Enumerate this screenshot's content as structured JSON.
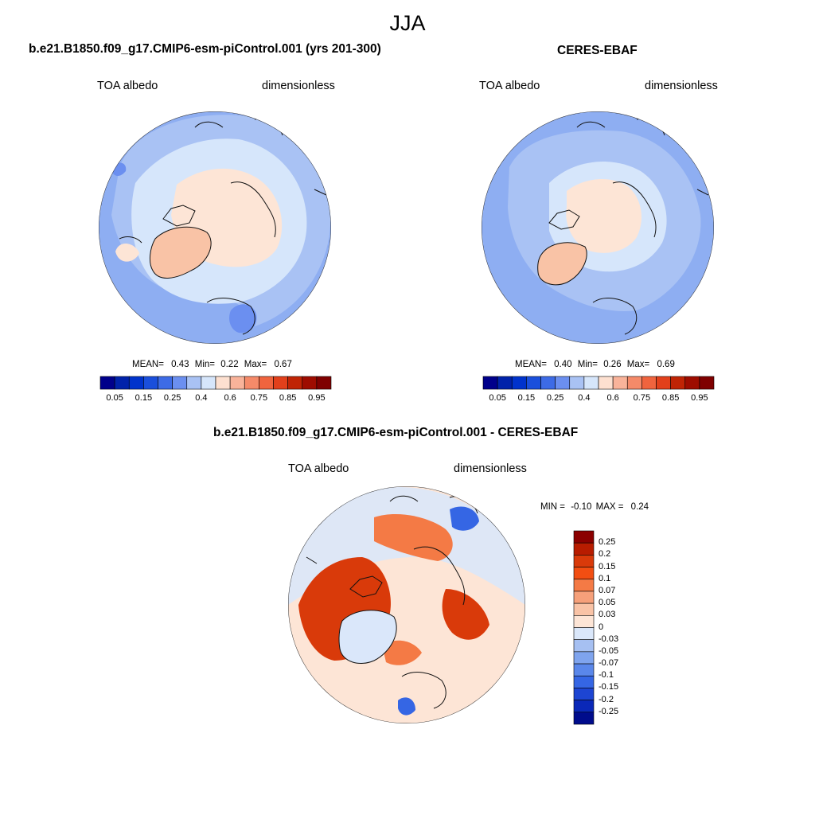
{
  "figure": {
    "season": "JJA"
  },
  "panels": [
    {
      "title": "b.e21.B1850.f09_g17.CMIP6-esm-piControl.001 (yrs 201-300)",
      "left_label": "TOA albedo",
      "right_label": "dimensionless",
      "stats": {
        "mean_label": "MEAN=",
        "mean": "0.43",
        "min_label": "Min=",
        "min": "0.22",
        "max_label": "Max=",
        "max": "0.67"
      }
    },
    {
      "title": "CERES-EBAF",
      "left_label": "TOA albedo",
      "right_label": "dimensionless",
      "stats": {
        "mean_label": "MEAN=",
        "mean": "0.40",
        "min_label": "Min=",
        "min": "0.26",
        "max_label": "Max=",
        "max": "0.69"
      }
    },
    {
      "title": "b.e21.B1850.f09_g17.CMIP6-esm-piControl.001 - CERES-EBAF",
      "left_label": "TOA albedo",
      "right_label": "dimensionless",
      "stats": {
        "min_label": "MIN =",
        "min": "-0.10",
        "max_label": "MAX =",
        "max": "0.24"
      }
    }
  ],
  "chart_data": [
    {
      "type": "heatmap",
      "projection": "north-polar-stereographic",
      "variable": "TOA albedo",
      "units": "dimensionless",
      "colorbar_orientation": "horizontal",
      "colorbar_ticks": [
        "0.05",
        "0.15",
        "0.25",
        "0.4",
        "0.6",
        "0.75",
        "0.85",
        "0.95"
      ],
      "colorbar_levels": [
        0.05,
        0.1,
        0.15,
        0.2,
        0.25,
        0.3,
        0.4,
        0.5,
        0.6,
        0.7,
        0.75,
        0.8,
        0.85,
        0.9,
        0.95
      ],
      "colorbar_colors": [
        "#00008b",
        "#0022aa",
        "#0033cc",
        "#1a4fdc",
        "#3d6be6",
        "#6b8ff0",
        "#a9c2f4",
        "#d6e6fb",
        "#fde0d0",
        "#f9b39a",
        "#f58a69",
        "#f0643e",
        "#e2401b",
        "#c02405",
        "#9e0c00",
        "#7f0000"
      ],
      "regions": [
        {
          "name": "outer-ocean",
          "value": 0.3
        },
        {
          "name": "midlatitude-cloud-band",
          "value": 0.4
        },
        {
          "name": "arctic-ocean",
          "value": 0.52
        },
        {
          "name": "greenland",
          "value": 0.65
        }
      ]
    },
    {
      "type": "heatmap",
      "projection": "north-polar-stereographic",
      "variable": "TOA albedo",
      "units": "dimensionless",
      "colorbar_orientation": "horizontal",
      "colorbar_ticks": [
        "0.05",
        "0.15",
        "0.25",
        "0.4",
        "0.6",
        "0.75",
        "0.85",
        "0.95"
      ],
      "colorbar_levels": [
        0.05,
        0.1,
        0.15,
        0.2,
        0.25,
        0.3,
        0.4,
        0.5,
        0.6,
        0.7,
        0.75,
        0.8,
        0.85,
        0.9,
        0.95
      ],
      "colorbar_colors": [
        "#00008b",
        "#0022aa",
        "#0033cc",
        "#1a4fdc",
        "#3d6be6",
        "#6b8ff0",
        "#a9c2f4",
        "#d6e6fb",
        "#fde0d0",
        "#f9b39a",
        "#f58a69",
        "#f0643e",
        "#e2401b",
        "#c02405",
        "#9e0c00",
        "#7f0000"
      ],
      "regions": [
        {
          "name": "outer-ocean",
          "value": 0.28
        },
        {
          "name": "midlatitude-cloud-band",
          "value": 0.35
        },
        {
          "name": "arctic-ocean",
          "value": 0.48
        },
        {
          "name": "greenland",
          "value": 0.64
        }
      ]
    },
    {
      "type": "heatmap",
      "projection": "north-polar-stereographic",
      "variable": "TOA albedo",
      "units": "dimensionless",
      "colorbar_orientation": "vertical",
      "colorbar_ticks": [
        "0.25",
        "0.2",
        "0.15",
        "0.1",
        "0.07",
        "0.05",
        "0.03",
        "0",
        "-0.03",
        "-0.05",
        "-0.07",
        "-0.1",
        "-0.15",
        "-0.2",
        "-0.25"
      ],
      "colorbar_colors": [
        "#8b0000",
        "#b81c00",
        "#d93a0a",
        "#f24e12",
        "#f47a45",
        "#f6a07a",
        "#f9c3a6",
        "#fde5d6",
        "#dae7fa",
        "#a6c0f2",
        "#7fa4ee",
        "#5a87ea",
        "#3566e4",
        "#1d45d2",
        "#0a28b8",
        "#000c8c"
      ],
      "regions": [
        {
          "name": "background",
          "value": 0.02
        },
        {
          "name": "land-margins",
          "value": 0.12
        },
        {
          "name": "greenland",
          "value": -0.03
        },
        {
          "name": "north-pacific",
          "value": -0.08
        }
      ]
    }
  ]
}
